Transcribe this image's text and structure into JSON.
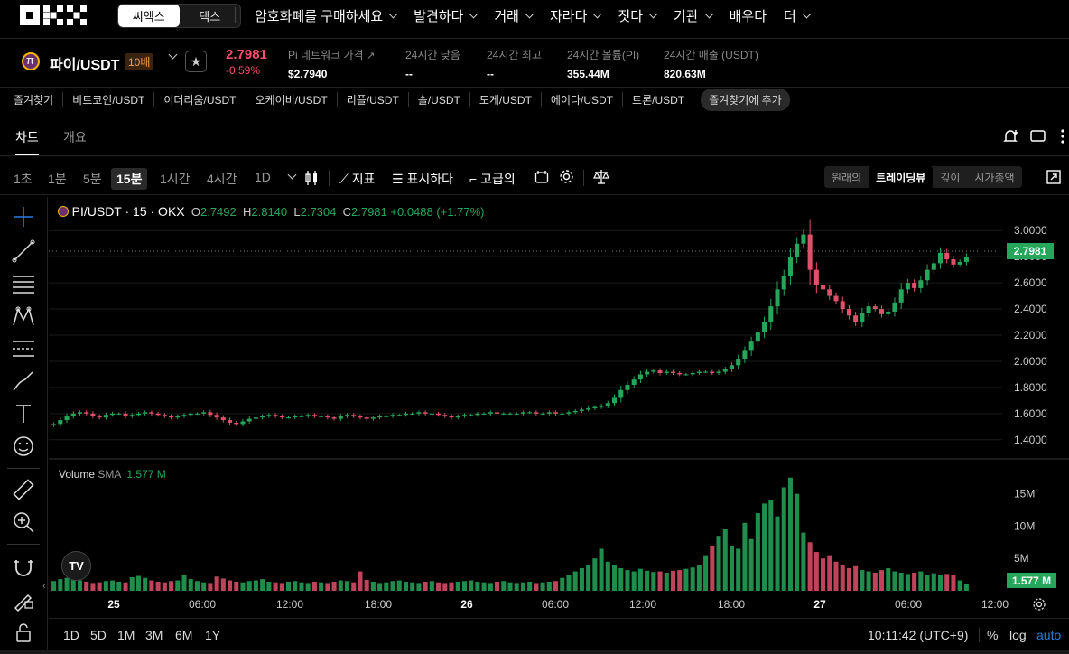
{
  "nav": {
    "segment": [
      "씨엑스",
      "덱스"
    ],
    "items": [
      "암호화폐를 구매하세요",
      "발견하다",
      "거래",
      "자라다",
      "짓다",
      "기관",
      "배우다",
      "더"
    ]
  },
  "ticker": {
    "pair": "파이/USDT",
    "leverage": "10배",
    "price": "2.7981",
    "change": "-0.59%",
    "stats": [
      {
        "label": "Pi 네트워크 가격",
        "value": "$2.7940"
      },
      {
        "label": "24시간 낮음",
        "value": "--"
      },
      {
        "label": "24시간 최고",
        "value": "--"
      },
      {
        "label": "24시간 볼륨(PI)",
        "value": "355.44M"
      },
      {
        "label": "24시간 매출 (USDT)",
        "value": "820.63M"
      }
    ]
  },
  "favorites": [
    "즐겨찾기",
    "비트코인/USDT",
    "이더리움/USDT",
    "오케이비/USDT",
    "리플/USDT",
    "솔/USDT",
    "도게/USDT",
    "에이다/USDT",
    "트론/USDT"
  ],
  "favorites_add": "즐겨찾기에 추가",
  "tabs": [
    "차트",
    "개요"
  ],
  "toolbar": {
    "timeframes": [
      "1초",
      "1분",
      "5분",
      "15분",
      "1시간",
      "4시간",
      "1D"
    ],
    "indicators": "지표",
    "display": "표시하다",
    "advanced": "고급의",
    "views": [
      "원래의",
      "트레이딩뷰",
      "깊이",
      "시가총액"
    ]
  },
  "legend": {
    "symbol": "PI/USDT · 15 · OKX",
    "o_label": "O",
    "o": "2.7492",
    "h_label": "H",
    "h": "2.8140",
    "l_label": "L",
    "l": "2.7304",
    "c_label": "C",
    "c": "2.7981",
    "chg": "+0.0488 (+1.77%)"
  },
  "volume_legend": {
    "label": "Volume",
    "sma": "SMA",
    "value": "1.577 M"
  },
  "price_tag": "2.7981",
  "volume_tag": "1.577 M",
  "price_axis": [
    "3.0000",
    "2.8000",
    "2.6000",
    "2.4000",
    "2.2000",
    "2.0000",
    "1.8000",
    "1.6000",
    "1.4000"
  ],
  "volume_axis": [
    "15M",
    "10M",
    "5M"
  ],
  "time_axis": [
    "25",
    "06:00",
    "12:00",
    "18:00",
    "26",
    "06:00",
    "12:00",
    "18:00",
    "27",
    "06:00",
    "12:00"
  ],
  "bottom": {
    "ranges": [
      "1D",
      "5D",
      "1M",
      "3M",
      "6M",
      "1Y"
    ],
    "clock": "10:11:42 (UTC+9)",
    "percent": "%",
    "log": "log",
    "auto": "auto"
  },
  "colors": {
    "up": "#26a65b",
    "down": "#e0506b",
    "accent": "#ff4d6a"
  },
  "chart_data": {
    "type": "candlestick",
    "timeframe": "15m",
    "series_close_approx": [
      1.52,
      1.55,
      1.58,
      1.6,
      1.61,
      1.6,
      1.58,
      1.57,
      1.59,
      1.6,
      1.6,
      1.58,
      1.59,
      1.6,
      1.61,
      1.6,
      1.59,
      1.58,
      1.57,
      1.58,
      1.59,
      1.6,
      1.6,
      1.61,
      1.59,
      1.57,
      1.55,
      1.53,
      1.52,
      1.54,
      1.56,
      1.57,
      1.58,
      1.59,
      1.58,
      1.57,
      1.57,
      1.58,
      1.58,
      1.59,
      1.58,
      1.58,
      1.57,
      1.56,
      1.58,
      1.59,
      1.58,
      1.57,
      1.56,
      1.57,
      1.58,
      1.58,
      1.59,
      1.59,
      1.6,
      1.6,
      1.61,
      1.6,
      1.6,
      1.59,
      1.58,
      1.57,
      1.58,
      1.59,
      1.59,
      1.6,
      1.6,
      1.61,
      1.6,
      1.6,
      1.6,
      1.6,
      1.61,
      1.61,
      1.6,
      1.6,
      1.61,
      1.6,
      1.6,
      1.61,
      1.62,
      1.63,
      1.64,
      1.65,
      1.66,
      1.68,
      1.72,
      1.78,
      1.82,
      1.86,
      1.9,
      1.92,
      1.93,
      1.91,
      1.92,
      1.91,
      1.9,
      1.9,
      1.91,
      1.92,
      1.92,
      1.91,
      1.92,
      1.94,
      1.97,
      2.02,
      2.08,
      2.15,
      2.22,
      2.3,
      2.42,
      2.55,
      2.65,
      2.8,
      2.9,
      2.97,
      2.7,
      2.58,
      2.55,
      2.5,
      2.46,
      2.4,
      2.35,
      2.3,
      2.37,
      2.42,
      2.4,
      2.36,
      2.38,
      2.45,
      2.55,
      2.6,
      2.56,
      2.62,
      2.7,
      2.75,
      2.83,
      2.78,
      2.74,
      2.76,
      2.8
    ],
    "volume_approx_m": [
      1.5,
      1.8,
      2.0,
      2.2,
      1.6,
      1.4,
      1.2,
      1.3,
      1.5,
      1.6,
      1.4,
      1.3,
      2.1,
      2.3,
      2.0,
      1.6,
      1.4,
      1.3,
      1.5,
      1.6,
      2.4,
      1.8,
      1.5,
      1.3,
      1.2,
      2.2,
      1.9,
      1.6,
      1.4,
      1.3,
      1.5,
      1.6,
      1.8,
      1.4,
      1.3,
      1.2,
      1.4,
      1.5,
      1.3,
      1.2,
      1.4,
      1.3,
      1.2,
      1.4,
      1.6,
      1.5,
      1.3,
      3.0,
      1.7,
      1.4,
      1.2,
      1.3,
      1.5,
      1.6,
      1.4,
      1.3,
      1.2,
      1.4,
      1.5,
      1.3,
      1.2,
      1.3,
      1.4,
      1.5,
      1.6,
      1.4,
      1.3,
      1.2,
      1.4,
      1.5,
      1.3,
      1.2,
      1.3,
      1.4,
      1.2,
      1.3,
      1.4,
      1.5,
      2.0,
      2.5,
      3.0,
      3.5,
      4.0,
      5.0,
      6.5,
      4.5,
      4.0,
      3.5,
      3.2,
      3.0,
      3.4,
      3.1,
      2.9,
      3.0,
      2.8,
      3.1,
      3.2,
      3.4,
      3.6,
      4.0,
      5.5,
      7.0,
      8.5,
      9.5,
      7.0,
      6.5,
      10.5,
      8.0,
      12.0,
      13.5,
      14.0,
      11.5,
      16.0,
      17.5,
      15.0,
      9.0,
      7.5,
      6.0,
      5.0,
      5.5,
      4.5,
      4.0,
      3.5,
      3.8,
      3.2,
      3.0,
      2.8,
      3.2,
      3.5,
      3.0,
      2.8,
      2.6,
      2.8,
      3.0,
      2.5,
      2.7,
      2.4,
      2.6,
      2.5,
      1.6
    ],
    "yrange": [
      1.35,
      3.05
    ],
    "volume_range": [
      0,
      19
    ],
    "last_price": 2.7981
  }
}
